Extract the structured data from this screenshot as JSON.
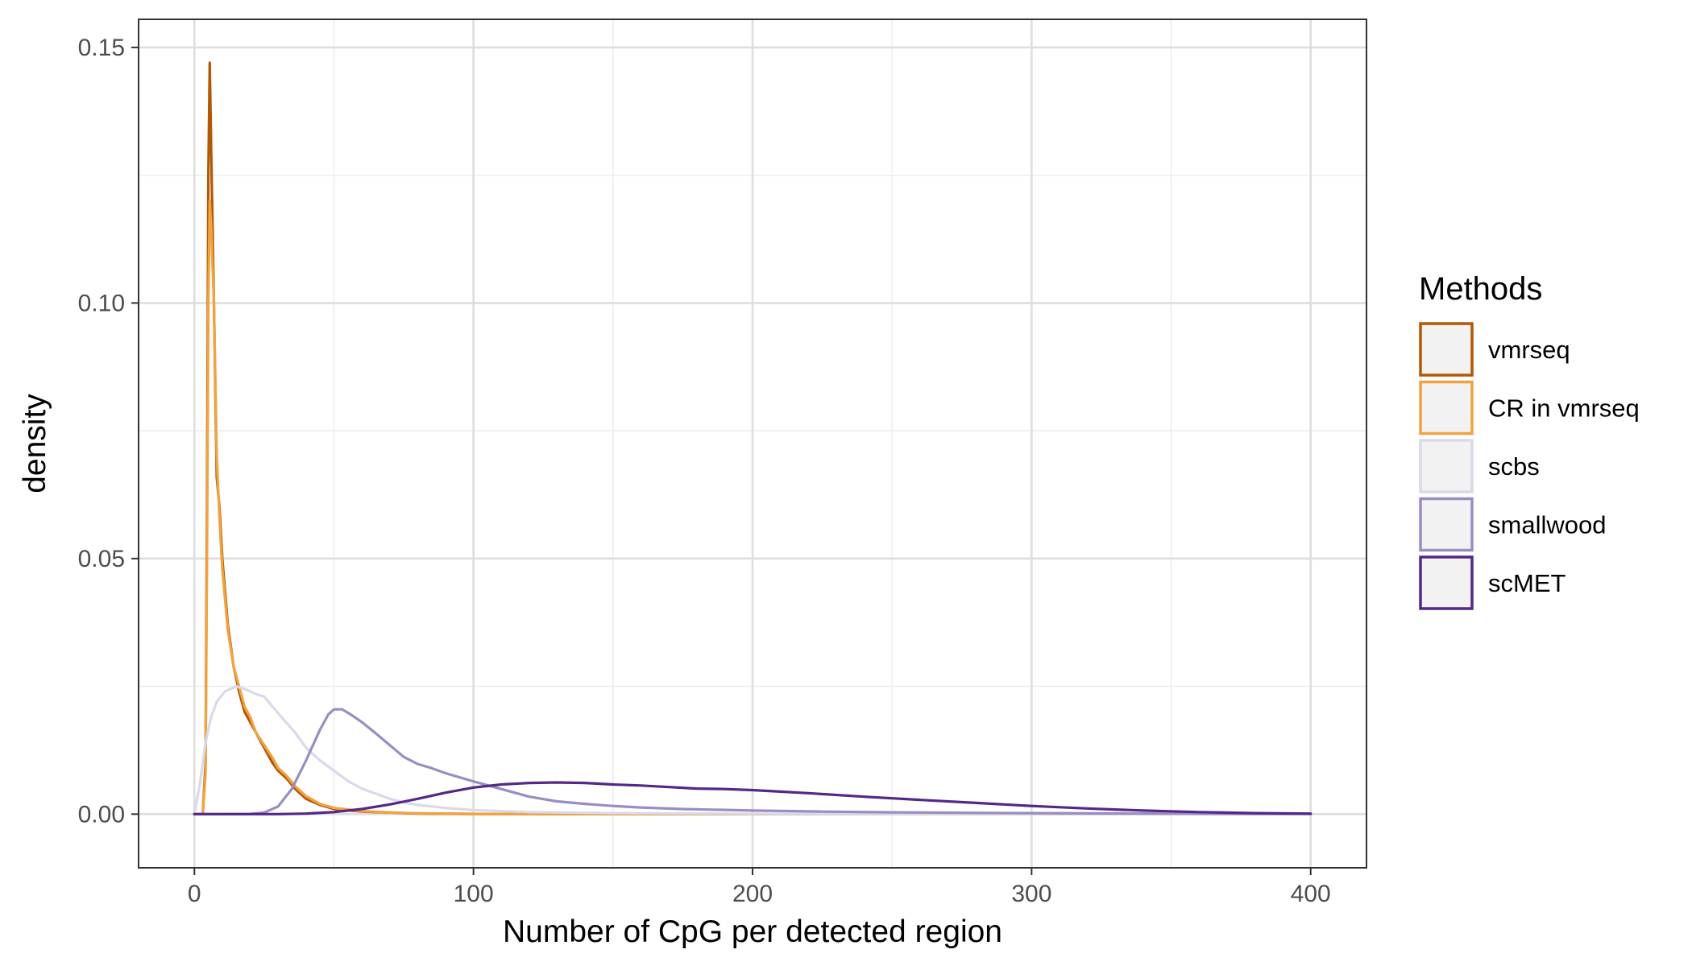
{
  "chart_data": {
    "type": "line",
    "title": "",
    "xlabel": "Number of CpG per detected region",
    "ylabel": "density",
    "xlim": [
      -20,
      420
    ],
    "ylim": [
      -0.0105,
      0.1555
    ],
    "x_ticks": [
      0,
      100,
      200,
      300,
      400
    ],
    "x_tick_labels": [
      "0",
      "100",
      "200",
      "300",
      "400"
    ],
    "y_ticks": [
      0,
      0.05,
      0.1,
      0.15
    ],
    "y_tick_labels": [
      "0.00",
      "0.05",
      "0.10",
      "0.15"
    ],
    "grid": true,
    "legend_title": "Methods",
    "legend_position": "right",
    "series": [
      {
        "name": "vmrseq",
        "color": "#b35806",
        "points": [
          [
            0,
            0
          ],
          [
            3,
            0
          ],
          [
            4,
            0.01
          ],
          [
            4.5,
            0.06
          ],
          [
            5,
            0.125
          ],
          [
            5.5,
            0.147
          ],
          [
            6,
            0.13
          ],
          [
            7,
            0.1
          ],
          [
            8,
            0.066
          ],
          [
            9,
            0.06
          ],
          [
            10,
            0.05
          ],
          [
            12,
            0.037
          ],
          [
            14,
            0.029
          ],
          [
            16,
            0.024
          ],
          [
            18,
            0.02
          ],
          [
            20,
            0.018
          ],
          [
            22,
            0.016
          ],
          [
            25,
            0.013
          ],
          [
            28,
            0.01
          ],
          [
            30,
            0.0085
          ],
          [
            33,
            0.007
          ],
          [
            36,
            0.005
          ],
          [
            40,
            0.003
          ],
          [
            45,
            0.0018
          ],
          [
            50,
            0.001
          ],
          [
            60,
            0.0005
          ],
          [
            70,
            0.0003
          ],
          [
            80,
            0.0001
          ],
          [
            100,
            3e-05
          ],
          [
            150,
            0
          ],
          [
            200,
            0
          ],
          [
            250,
            0
          ],
          [
            300,
            0
          ],
          [
            350,
            0
          ],
          [
            400,
            0
          ]
        ]
      },
      {
        "name": "CR in vmrseq",
        "color": "#f1a340",
        "points": [
          [
            0,
            0
          ],
          [
            3,
            0
          ],
          [
            4,
            0.008
          ],
          [
            4.5,
            0.05
          ],
          [
            5,
            0.1
          ],
          [
            5.5,
            0.12
          ],
          [
            6,
            0.115
          ],
          [
            7,
            0.1
          ],
          [
            8,
            0.07
          ],
          [
            9,
            0.058
          ],
          [
            10,
            0.048
          ],
          [
            12,
            0.036
          ],
          [
            14,
            0.029
          ],
          [
            16,
            0.025
          ],
          [
            18,
            0.021
          ],
          [
            20,
            0.019
          ],
          [
            22,
            0.016
          ],
          [
            25,
            0.0135
          ],
          [
            28,
            0.011
          ],
          [
            30,
            0.009
          ],
          [
            33,
            0.0075
          ],
          [
            36,
            0.0055
          ],
          [
            40,
            0.0035
          ],
          [
            45,
            0.002
          ],
          [
            50,
            0.0012
          ],
          [
            60,
            0.0006
          ],
          [
            70,
            0.0003
          ],
          [
            80,
            0.00015
          ],
          [
            100,
            5e-05
          ],
          [
            150,
            0
          ],
          [
            200,
            0
          ],
          [
            250,
            0
          ],
          [
            300,
            0
          ],
          [
            350,
            0
          ],
          [
            400,
            0
          ]
        ]
      },
      {
        "name": "scbs",
        "color": "#d8daeb",
        "points": [
          [
            0,
            0
          ],
          [
            2,
            0.006
          ],
          [
            4,
            0.014
          ],
          [
            6,
            0.019
          ],
          [
            8,
            0.022
          ],
          [
            11,
            0.024
          ],
          [
            15,
            0.025
          ],
          [
            18,
            0.0245
          ],
          [
            22,
            0.0235
          ],
          [
            25,
            0.023
          ],
          [
            28,
            0.021
          ],
          [
            32,
            0.0185
          ],
          [
            36,
            0.016
          ],
          [
            40,
            0.013
          ],
          [
            45,
            0.0105
          ],
          [
            50,
            0.0085
          ],
          [
            55,
            0.0065
          ],
          [
            60,
            0.005
          ],
          [
            65,
            0.004
          ],
          [
            70,
            0.003
          ],
          [
            75,
            0.0023
          ],
          [
            80,
            0.0018
          ],
          [
            90,
            0.0012
          ],
          [
            100,
            0.0008
          ],
          [
            120,
            0.0004
          ],
          [
            150,
            0.0002
          ],
          [
            200,
            5e-05
          ],
          [
            250,
            0
          ],
          [
            300,
            0
          ],
          [
            350,
            0
          ],
          [
            400,
            0
          ]
        ]
      },
      {
        "name": "smallwood",
        "color": "#998ec3",
        "points": [
          [
            0,
            0
          ],
          [
            10,
            0
          ],
          [
            20,
            3e-05
          ],
          [
            25,
            0.0003
          ],
          [
            30,
            0.0015
          ],
          [
            35,
            0.005
          ],
          [
            40,
            0.0105
          ],
          [
            45,
            0.0165
          ],
          [
            48,
            0.0195
          ],
          [
            50,
            0.0205
          ],
          [
            53,
            0.0205
          ],
          [
            56,
            0.0195
          ],
          [
            60,
            0.018
          ],
          [
            65,
            0.0158
          ],
          [
            70,
            0.0135
          ],
          [
            75,
            0.0112
          ],
          [
            80,
            0.0098
          ],
          [
            85,
            0.009
          ],
          [
            90,
            0.008
          ],
          [
            100,
            0.0064
          ],
          [
            110,
            0.0049
          ],
          [
            120,
            0.0034
          ],
          [
            130,
            0.0025
          ],
          [
            140,
            0.002
          ],
          [
            150,
            0.0016
          ],
          [
            160,
            0.0013
          ],
          [
            175,
            0.001
          ],
          [
            200,
            0.0007
          ],
          [
            225,
            0.0005
          ],
          [
            250,
            0.00035
          ],
          [
            300,
            0.0002
          ],
          [
            350,
            0.0001
          ],
          [
            400,
            3e-05
          ]
        ]
      },
      {
        "name": "scMET",
        "color": "#542788",
        "points": [
          [
            0,
            0
          ],
          [
            30,
            0
          ],
          [
            40,
            0.0001
          ],
          [
            50,
            0.0004
          ],
          [
            60,
            0.001
          ],
          [
            70,
            0.0019
          ],
          [
            80,
            0.003
          ],
          [
            90,
            0.0042
          ],
          [
            100,
            0.0052
          ],
          [
            110,
            0.0058
          ],
          [
            120,
            0.0061
          ],
          [
            130,
            0.0062
          ],
          [
            140,
            0.0061
          ],
          [
            150,
            0.0058
          ],
          [
            160,
            0.0056
          ],
          [
            170,
            0.0053
          ],
          [
            180,
            0.005
          ],
          [
            190,
            0.0049
          ],
          [
            200,
            0.0047
          ],
          [
            210,
            0.0044
          ],
          [
            220,
            0.0041
          ],
          [
            240,
            0.0034
          ],
          [
            260,
            0.0028
          ],
          [
            280,
            0.0022
          ],
          [
            300,
            0.0016
          ],
          [
            320,
            0.0011
          ],
          [
            340,
            0.0007
          ],
          [
            360,
            0.0004
          ],
          [
            380,
            0.0002
          ],
          [
            400,
            0.0001
          ]
        ]
      }
    ]
  }
}
